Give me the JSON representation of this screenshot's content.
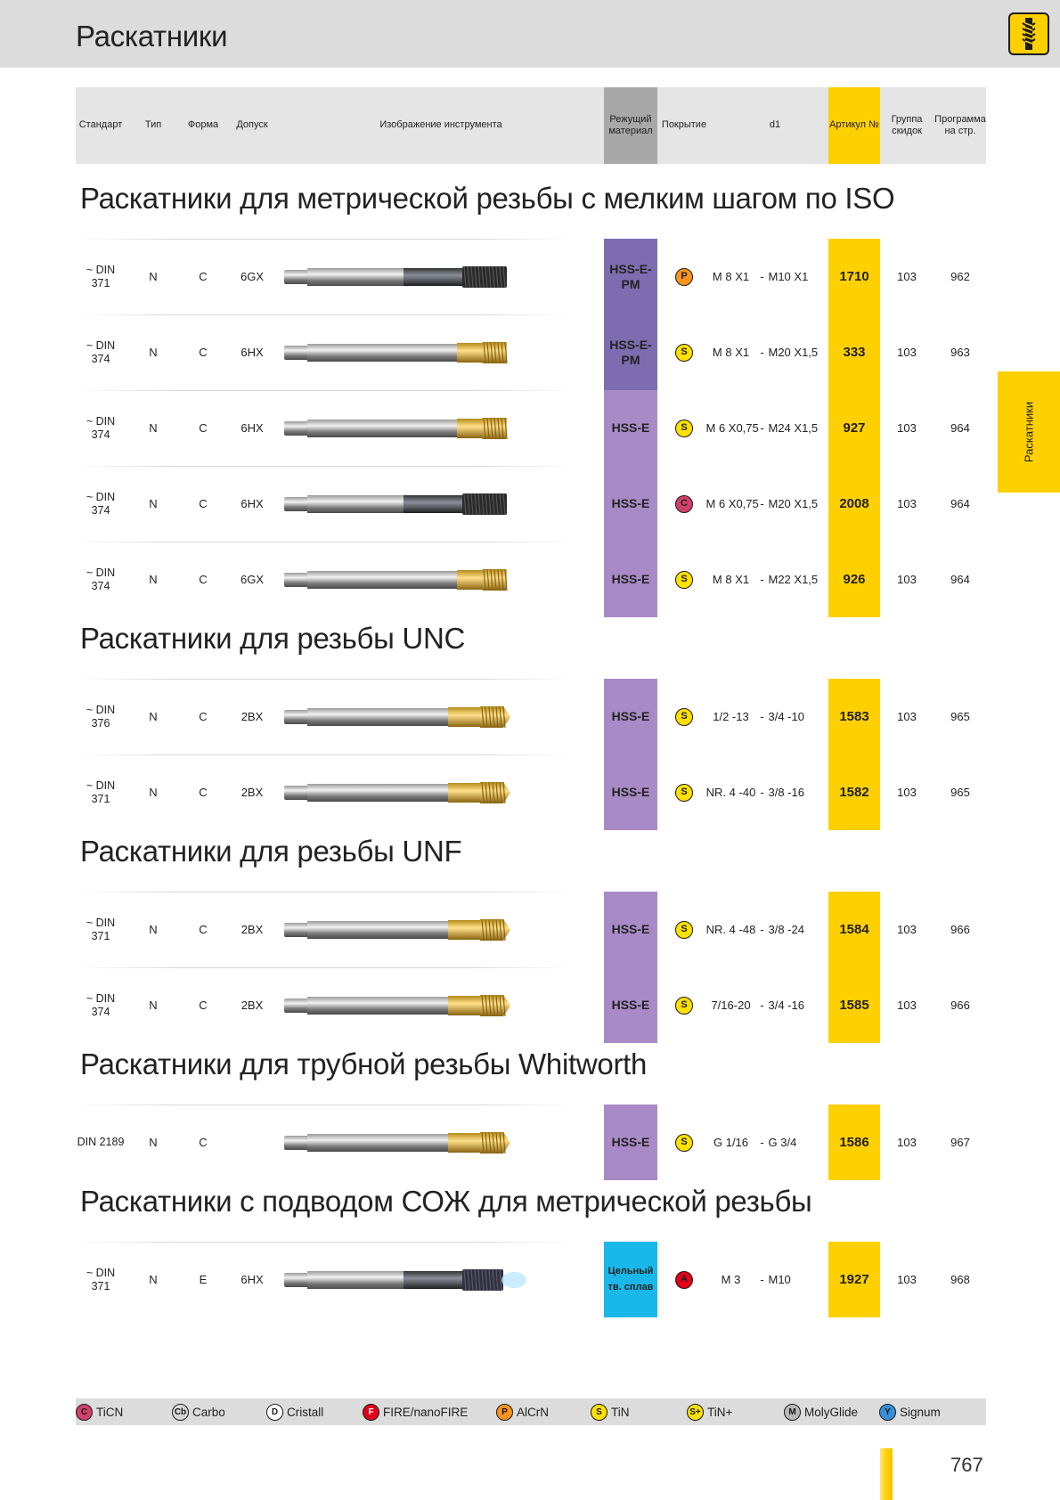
{
  "page": {
    "title": "Раскатники",
    "side_tab": "Раскатники",
    "page_number": "767"
  },
  "colors": {
    "accent_yellow": "#ffd000",
    "mat_pm": "#7d6db0",
    "mat_e": "#a88ac6",
    "mat_solid": "#1ab8ea",
    "coat_P": "#f7941d",
    "coat_S": "#ffe000",
    "coat_C": "#d0406a",
    "coat_A": "#e3001b"
  },
  "header": {
    "standard": "Стандарт",
    "type": "Тип",
    "form": "Форма",
    "tolerance": "Допуск",
    "image": "Изображение инструмента",
    "material": "Режущий материал",
    "coating": "Покрытие",
    "d1": "d1",
    "article": "Артикул №",
    "discount": "Группа скидок",
    "program": "Программа на стр."
  },
  "sections": [
    {
      "title": "Раскатники для метрической резьбы с мелким шагом по ISO",
      "rows": [
        {
          "std": "~ DIN 371",
          "type": "N",
          "form": "C",
          "tol": "6GX",
          "mat": "HSS-E-PM",
          "mat_class": "mat-pm",
          "coat": "P",
          "d1_from": "M 8 X1",
          "d1_sep": "-",
          "d1_to": "M10 X1",
          "art": "1710",
          "disc": "103",
          "prog": "962",
          "tool": "dark"
        },
        {
          "std": "~ DIN 374",
          "type": "N",
          "form": "C",
          "tol": "6HX",
          "mat": "HSS-E-PM",
          "mat_class": "mat-pm",
          "coat": "S",
          "d1_from": "M 8 X1",
          "d1_sep": "-",
          "d1_to": "M20 X1,5",
          "art": "333",
          "disc": "103",
          "prog": "963",
          "tool": "gold-short"
        },
        {
          "std": "~ DIN 374",
          "type": "N",
          "form": "C",
          "tol": "6HX",
          "mat": "HSS-E",
          "mat_class": "mat-e",
          "coat": "S",
          "d1_from": "M 6 X0,75",
          "d1_sep": "-",
          "d1_to": "M24 X1,5",
          "art": "927",
          "disc": "103",
          "prog": "964",
          "tool": "gold-short"
        },
        {
          "std": "~ DIN 374",
          "type": "N",
          "form": "C",
          "tol": "6HX",
          "mat": "HSS-E",
          "mat_class": "mat-e",
          "coat": "C",
          "d1_from": "M 6 X0,75",
          "d1_sep": "-",
          "d1_to": "M20 X1,5",
          "art": "2008",
          "disc": "103",
          "prog": "964",
          "tool": "dark"
        },
        {
          "std": "~ DIN 374",
          "type": "N",
          "form": "C",
          "tol": "6GX",
          "mat": "HSS-E",
          "mat_class": "mat-e",
          "coat": "S",
          "d1_from": "M 8 X1",
          "d1_sep": "-",
          "d1_to": "M22 X1,5",
          "art": "926",
          "disc": "103",
          "prog": "964",
          "tool": "gold-short"
        }
      ]
    },
    {
      "title": "Раскатники для резьбы UNC",
      "rows": [
        {
          "std": "~ DIN 376",
          "type": "N",
          "form": "C",
          "tol": "2BX",
          "mat": "HSS-E",
          "mat_class": "mat-e",
          "coat": "S",
          "d1_from": "1/2 -13",
          "d1_sep": "-",
          "d1_to": "3/4 -10",
          "art": "1583",
          "disc": "103",
          "prog": "965",
          "tool": "gold-long"
        },
        {
          "std": "~ DIN 371",
          "type": "N",
          "form": "C",
          "tol": "2BX",
          "mat": "HSS-E",
          "mat_class": "mat-e",
          "coat": "S",
          "d1_from": "NR. 4 -40",
          "d1_sep": "-",
          "d1_to": "3/8 -16",
          "art": "1582",
          "disc": "103",
          "prog": "965",
          "tool": "gold-long"
        }
      ]
    },
    {
      "title": "Раскатники для резьбы UNF",
      "rows": [
        {
          "std": "~ DIN 371",
          "type": "N",
          "form": "C",
          "tol": "2BX",
          "mat": "HSS-E",
          "mat_class": "mat-e",
          "coat": "S",
          "d1_from": "NR. 4 -48",
          "d1_sep": "-",
          "d1_to": "3/8 -24",
          "art": "1584",
          "disc": "103",
          "prog": "966",
          "tool": "gold-long"
        },
        {
          "std": "~ DIN 374",
          "type": "N",
          "form": "C",
          "tol": "2BX",
          "mat": "HSS-E",
          "mat_class": "mat-e",
          "coat": "S",
          "d1_from": "7/16-20",
          "d1_sep": "-",
          "d1_to": "3/4 -16",
          "art": "1585",
          "disc": "103",
          "prog": "966",
          "tool": "gold-long"
        }
      ]
    },
    {
      "title": "Раскатники для трубной резьбы Whitworth",
      "rows": [
        {
          "std": "DIN 2189",
          "type": "N",
          "form": "C",
          "tol": "",
          "mat": "HSS-E",
          "mat_class": "mat-e",
          "coat": "S",
          "d1_from": "G 1/16",
          "d1_sep": "-",
          "d1_to": "G 3/4",
          "art": "1586",
          "disc": "103",
          "prog": "967",
          "tool": "gold-long"
        }
      ]
    },
    {
      "title": "Раскатники с подводом СОЖ для метрической резьбы",
      "rows": [
        {
          "std": "~ DIN 371",
          "type": "N",
          "form": "E",
          "tol": "6HX",
          "mat": "Цельный тв. сплав",
          "mat_class": "mat-solid",
          "coat": "A",
          "d1_from": "M 3",
          "d1_sep": "-",
          "d1_to": "M10",
          "art": "1927",
          "disc": "103",
          "prog": "968",
          "tool": "coolant"
        }
      ]
    }
  ],
  "legend": [
    {
      "code": "C",
      "label": "TiCN",
      "color": "#d0406a"
    },
    {
      "code": "Cb",
      "label": "Carbo",
      "color": "#d8d8d8"
    },
    {
      "code": "D",
      "label": "Cristall",
      "color": "#ffffff"
    },
    {
      "code": "F",
      "label": "FIRE/nanoFIRE",
      "color": "#e3001b"
    },
    {
      "code": "P",
      "label": "AlCrN",
      "color": "#f7941d"
    },
    {
      "code": "S",
      "label": "TiN",
      "color": "#ffe000"
    },
    {
      "code": "S+",
      "label": "TiN+",
      "color": "#ffe000"
    },
    {
      "code": "M",
      "label": "MolyGlide",
      "color": "#b8b8b8"
    },
    {
      "code": "Y",
      "label": "Signum",
      "color": "#3a8ed8"
    }
  ]
}
